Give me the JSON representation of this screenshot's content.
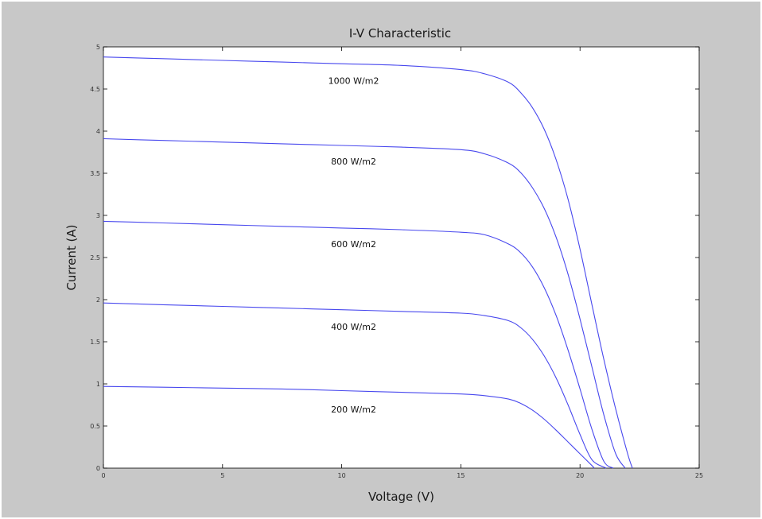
{
  "chart_data": {
    "type": "line",
    "title": "I-V Characteristic",
    "xlabel": "Voltage (V)",
    "ylabel": "Current (A)",
    "xlim": [
      0,
      25
    ],
    "ylim": [
      0,
      5
    ],
    "xticks": [
      0,
      5,
      10,
      15,
      20,
      25
    ],
    "xtick_labels": [
      "0",
      "5",
      "10",
      "15",
      "20",
      "25"
    ],
    "yticks": [
      0,
      0.5,
      1,
      1.5,
      2,
      2.5,
      3,
      3.5,
      4,
      4.5,
      5
    ],
    "ytick_labels": [
      "0",
      "0.5",
      "1",
      "1.5",
      "2",
      "2.5",
      "3",
      "3.5",
      "4",
      "4.5",
      "5"
    ],
    "grid": false,
    "series_color": "#4848ee",
    "series": [
      {
        "name": "1000 W/m2",
        "x": [
          0,
          2.5,
          5,
          7.5,
          10,
          12.5,
          15,
          16,
          17,
          17.5,
          18,
          18.5,
          19,
          19.5,
          20,
          20.5,
          21,
          21.5,
          22,
          22.2
        ],
        "y": [
          4.88,
          4.86,
          4.84,
          4.82,
          4.8,
          4.78,
          4.73,
          4.68,
          4.58,
          4.46,
          4.28,
          4.02,
          3.66,
          3.19,
          2.6,
          1.94,
          1.29,
          0.7,
          0.17,
          0
        ]
      },
      {
        "name": "800 W/m2",
        "x": [
          0,
          2.5,
          5,
          7.5,
          10,
          12.5,
          15,
          16,
          17,
          17.5,
          18,
          18.5,
          19,
          19.5,
          20,
          20.5,
          21,
          21.5,
          21.9
        ],
        "y": [
          3.91,
          3.89,
          3.87,
          3.85,
          3.83,
          3.81,
          3.78,
          3.73,
          3.62,
          3.51,
          3.33,
          3.08,
          2.74,
          2.3,
          1.77,
          1.2,
          0.63,
          0.17,
          0
        ]
      },
      {
        "name": "600 W/m2",
        "x": [
          0,
          2.5,
          5,
          7.5,
          10,
          12.5,
          15,
          16,
          17,
          17.5,
          18,
          18.5,
          19,
          19.5,
          20,
          20.5,
          21,
          21.4
        ],
        "y": [
          2.93,
          2.91,
          2.89,
          2.87,
          2.85,
          2.83,
          2.8,
          2.77,
          2.66,
          2.56,
          2.39,
          2.14,
          1.81,
          1.4,
          0.94,
          0.46,
          0.08,
          0
        ]
      },
      {
        "name": "400 W/m2",
        "x": [
          0,
          2.5,
          5,
          7.5,
          10,
          12.5,
          15,
          16,
          17,
          17.5,
          18,
          18.5,
          19,
          19.5,
          20,
          20.5,
          21.1
        ],
        "y": [
          1.96,
          1.94,
          1.92,
          1.9,
          1.88,
          1.86,
          1.84,
          1.81,
          1.75,
          1.67,
          1.53,
          1.33,
          1.07,
          0.75,
          0.4,
          0.1,
          0
        ]
      },
      {
        "name": "200 W/m2",
        "x": [
          0,
          2.5,
          5,
          7.5,
          10,
          12.5,
          15,
          16,
          17,
          17.5,
          18,
          18.5,
          19,
          19.5,
          20,
          20.5,
          20.6
        ],
        "y": [
          0.97,
          0.96,
          0.95,
          0.94,
          0.92,
          0.9,
          0.88,
          0.86,
          0.82,
          0.77,
          0.69,
          0.58,
          0.45,
          0.31,
          0.17,
          0.03,
          0
        ]
      }
    ],
    "annotations": [
      {
        "text": "1000 W/m2",
        "x": 10.5,
        "y": 4.6
      },
      {
        "text": "800 W/m2",
        "x": 10.5,
        "y": 3.64
      },
      {
        "text": "600 W/m2",
        "x": 10.5,
        "y": 2.66
      },
      {
        "text": "400 W/m2",
        "x": 10.5,
        "y": 1.68
      },
      {
        "text": "200 W/m2",
        "x": 10.5,
        "y": 0.7
      }
    ]
  }
}
